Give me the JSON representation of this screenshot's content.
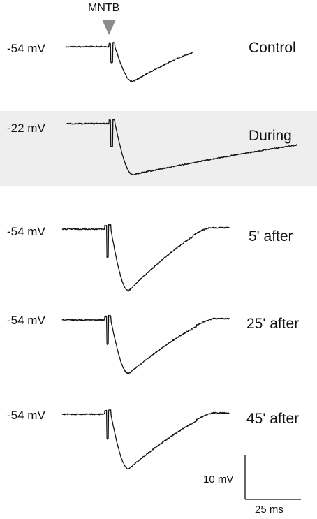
{
  "stimulus": {
    "label": "MNTB",
    "marker_color": "#8c8c8c"
  },
  "highlight_color": "#eeeeee",
  "trace_color": "#111111",
  "traces": [
    {
      "holding": "-54 mV",
      "condition": "Control",
      "highlighted": false,
      "depth_mV": -7.8,
      "recovery_ms": 34,
      "tail_mV": -0.3
    },
    {
      "holding": "-22 mV",
      "condition": "During",
      "highlighted": true,
      "depth_mV": -11.4,
      "recovery_ms": 120,
      "tail_mV": -2.4
    },
    {
      "holding": "-54 mV",
      "condition": "5' after",
      "highlighted": false,
      "depth_mV": -13.8,
      "recovery_ms": 36,
      "tail_mV": 0.0
    },
    {
      "holding": "-54 mV",
      "condition": "25' after",
      "highlighted": false,
      "depth_mV": -12.0,
      "recovery_ms": 38,
      "tail_mV": 0.0
    },
    {
      "holding": "-54 mV",
      "condition": "45' after",
      "highlighted": false,
      "depth_mV": -12.2,
      "recovery_ms": 38,
      "tail_mV": 0.0
    }
  ],
  "scale_bar": {
    "voltage_label": "10 mV",
    "time_label": "25 ms",
    "voltage_mV": 10,
    "time_ms": 25
  },
  "chart_data": {
    "type": "line",
    "x_unit": "ms",
    "y_unit": "mV",
    "stimulus_label": "MNTB",
    "series": [
      {
        "name": "Control",
        "holding_potential": "-54 mV",
        "x": [
          -25,
          -5,
          0,
          1,
          2,
          5,
          10,
          18,
          28,
          38,
          48,
          55
        ],
        "y": [
          0,
          0,
          0.6,
          -4.2,
          0.8,
          -1.8,
          -7.8,
          -5.6,
          -2.6,
          -0.4,
          0.3,
          0.2
        ]
      },
      {
        "name": "During",
        "holding_potential": "-22 mV",
        "x": [
          -25,
          -5,
          0,
          1,
          2,
          5,
          10,
          30,
          60,
          90,
          120,
          130
        ],
        "y": [
          0,
          0,
          0.2,
          -5.6,
          0.4,
          -2.0,
          -11.4,
          -8.6,
          -6.2,
          -4.2,
          -2.4,
          -2.2
        ]
      },
      {
        "name": "5' after",
        "holding_potential": "-54 mV",
        "x": [
          -25,
          -5,
          0,
          1,
          2,
          5,
          10,
          20,
          30,
          40,
          50,
          60
        ],
        "y": [
          0,
          0,
          0.8,
          -6.0,
          0.8,
          -3.0,
          -13.8,
          -9.0,
          -3.2,
          0.6,
          0.3,
          -0.2
        ]
      },
      {
        "name": "25' after",
        "holding_potential": "-54 mV",
        "x": [
          -25,
          -5,
          0,
          1,
          2,
          5,
          10,
          20,
          30,
          40,
          50,
          60
        ],
        "y": [
          0,
          0,
          0.6,
          -5.4,
          0.8,
          -2.6,
          -12.0,
          -7.8,
          -2.6,
          0.6,
          0.3,
          0.0
        ]
      },
      {
        "name": "45' after",
        "holding_potential": "-54 mV",
        "x": [
          -25,
          -5,
          0,
          1,
          2,
          5,
          10,
          20,
          30,
          40,
          50,
          60
        ],
        "y": [
          0,
          0,
          0.6,
          -5.6,
          0.8,
          -2.8,
          -12.2,
          -8.0,
          -2.6,
          0.8,
          0.4,
          0.0
        ]
      }
    ]
  }
}
